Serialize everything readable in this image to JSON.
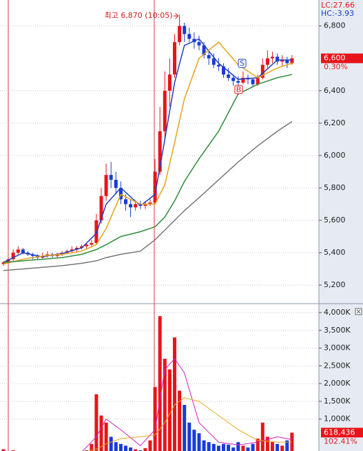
{
  "chart_data": [
    {
      "type": "candlestick",
      "up_color": "#e8141a",
      "down_color": "#1a3bd6",
      "open": [
        5330,
        5340,
        5360,
        5400,
        5420,
        5400,
        5390,
        5380,
        5370,
        5380,
        5390,
        5380,
        5390,
        5400,
        5410,
        5420,
        5430,
        5440,
        5450,
        5460,
        5600,
        5750,
        5880,
        5850,
        5800,
        5730,
        5700,
        5680,
        5700,
        5690,
        5700,
        5710,
        5900,
        6150,
        6400,
        6500,
        6700,
        6800,
        6750,
        6720,
        6700,
        6680,
        6620,
        6600,
        6560,
        6550,
        6500,
        6480,
        6460,
        6450,
        6480,
        6470,
        6440,
        6480,
        6560,
        6600,
        6610,
        6580,
        6590,
        6570
      ],
      "high": [
        5350,
        5370,
        5420,
        5440,
        5430,
        5410,
        5400,
        5390,
        5400,
        5410,
        5400,
        5400,
        5410,
        5420,
        5440,
        5440,
        5450,
        5460,
        5480,
        5640,
        5800,
        5950,
        5960,
        5900,
        5840,
        5760,
        5730,
        5720,
        5720,
        5720,
        5730,
        5980,
        6300,
        6520,
        6600,
        6750,
        6870,
        6820,
        6790,
        6760,
        6740,
        6700,
        6650,
        6630,
        6600,
        6570,
        6540,
        6500,
        6490,
        6520,
        6500,
        6480,
        6500,
        6600,
        6650,
        6640,
        6630,
        6620,
        6610,
        6620
      ],
      "low": [
        5320,
        5330,
        5350,
        5390,
        5390,
        5380,
        5360,
        5360,
        5360,
        5370,
        5370,
        5370,
        5380,
        5390,
        5400,
        5400,
        5420,
        5420,
        5440,
        5450,
        5580,
        5720,
        5800,
        5760,
        5700,
        5660,
        5620,
        5660,
        5670,
        5670,
        5690,
        5700,
        5880,
        6100,
        6300,
        6480,
        6680,
        6700,
        6700,
        6660,
        6650,
        6600,
        6560,
        6540,
        6520,
        6480,
        6460,
        6430,
        6420,
        6440,
        6440,
        6420,
        6430,
        6470,
        6540,
        6570,
        6560,
        6550,
        6540,
        6560
      ],
      "close": [
        5340,
        5360,
        5400,
        5420,
        5400,
        5390,
        5380,
        5370,
        5380,
        5390,
        5380,
        5390,
        5400,
        5410,
        5420,
        5430,
        5440,
        5450,
        5460,
        5600,
        5750,
        5880,
        5850,
        5800,
        5730,
        5700,
        5680,
        5700,
        5690,
        5700,
        5710,
        5900,
        6150,
        6400,
        6500,
        6700,
        6800,
        6750,
        6720,
        6700,
        6680,
        6620,
        6600,
        6560,
        6550,
        6500,
        6480,
        6460,
        6450,
        6480,
        6470,
        6440,
        6480,
        6560,
        6600,
        6610,
        6580,
        6590,
        6570,
        6600
      ],
      "line_x": [
        0,
        4,
        8,
        12,
        16,
        19,
        21,
        24,
        28,
        31,
        33,
        35,
        37,
        40,
        44,
        48,
        52,
        56,
        59
      ],
      "lines": [
        {
          "color": "#1f3fbf",
          "values": [
            5340,
            5400,
            5375,
            5395,
            5430,
            5520,
            5700,
            5800,
            5690,
            5760,
            6100,
            6450,
            6680,
            6720,
            6570,
            6470,
            6480,
            6590,
            6590
          ]
        },
        {
          "color": "#e8a317",
          "values": [
            5330,
            5360,
            5380,
            5390,
            5410,
            5450,
            5550,
            5760,
            5700,
            5700,
            5820,
            6080,
            6350,
            6600,
            6700,
            6560,
            6480,
            6540,
            6570
          ]
        },
        {
          "color": "#2e8b3a",
          "values": [
            5340,
            5350,
            5360,
            5370,
            5390,
            5420,
            5450,
            5500,
            5530,
            5560,
            5620,
            5720,
            5840,
            5980,
            6150,
            6380,
            6440,
            6480,
            6500
          ]
        },
        {
          "color": "#777777",
          "values": [
            5290,
            5300,
            5310,
            5320,
            5335,
            5350,
            5370,
            5390,
            5410,
            5480,
            5540,
            5600,
            5660,
            5740,
            5850,
            5960,
            6060,
            6150,
            6210
          ]
        }
      ],
      "ylim": [
        5090,
        6960
      ],
      "yticks": [
        {
          "value": 5200,
          "label": "5,200"
        },
        {
          "value": 5400,
          "label": "5,400"
        },
        {
          "value": 5600,
          "label": "5,600"
        },
        {
          "value": 5800,
          "label": "5,800"
        },
        {
          "value": 6000,
          "label": "6,000"
        },
        {
          "value": 6200,
          "label": "6,200"
        },
        {
          "value": 6400,
          "label": "6,400"
        },
        {
          "value": 6800,
          "label": "6,800"
        }
      ],
      "grid": true,
      "lc": "LC:27.66",
      "hc": "HC:-3.93",
      "high_note": "최고 6,870 (10:05)",
      "sell_mark": "S",
      "buy_mark": "B",
      "price_tag": "6,600",
      "change": "0.30%"
    },
    {
      "type": "bar",
      "values": [
        150000,
        80000,
        120000,
        60000,
        50000,
        40000,
        50000,
        30000,
        40000,
        50000,
        30000,
        40000,
        50000,
        60000,
        50000,
        70000,
        90000,
        120000,
        300000,
        1700000,
        1100000,
        900000,
        500000,
        350000,
        300000,
        250000,
        200000,
        150000,
        120000,
        180000,
        400000,
        1900000,
        3900000,
        2700000,
        2400000,
        3300000,
        1800000,
        1400000,
        900000,
        700000,
        600000,
        400000,
        350000,
        300000,
        250000,
        300000,
        280000,
        200000,
        350000,
        250000,
        200000,
        300000,
        450000,
        900000,
        500000,
        350000,
        300000,
        250000,
        400000,
        618436
      ],
      "lines": [
        {
          "color": "#d020c8",
          "values": [
            100000,
            60000,
            40000,
            45000,
            70000,
            500000,
            1000000,
            700000,
            250000,
            700000,
            2400000,
            2700000,
            2300000,
            900000,
            350000,
            270000,
            350000,
            500000,
            420000
          ]
        },
        {
          "color": "#e8a317",
          "values": [
            90000,
            80000,
            60000,
            50000,
            55000,
            150000,
            300000,
            450000,
            500000,
            550000,
            900000,
            1400000,
            1600000,
            1500000,
            1100000,
            700000,
            400000,
            350000,
            350000
          ]
        }
      ],
      "ylim": [
        100000,
        4175000
      ],
      "yticks": [
        {
          "value": 1000000,
          "label": "1,000K"
        },
        {
          "value": 1500000,
          "label": "1,500K"
        },
        {
          "value": 2000000,
          "label": "2,000K"
        },
        {
          "value": 2500000,
          "label": "2,500K"
        },
        {
          "value": 3000000,
          "label": "3,000K"
        },
        {
          "value": 3500000,
          "label": "3,500K"
        },
        {
          "value": 4000000,
          "label": "4,000K"
        }
      ],
      "grid": true,
      "value_tag": "618,436",
      "ratio": "102.41%"
    }
  ]
}
